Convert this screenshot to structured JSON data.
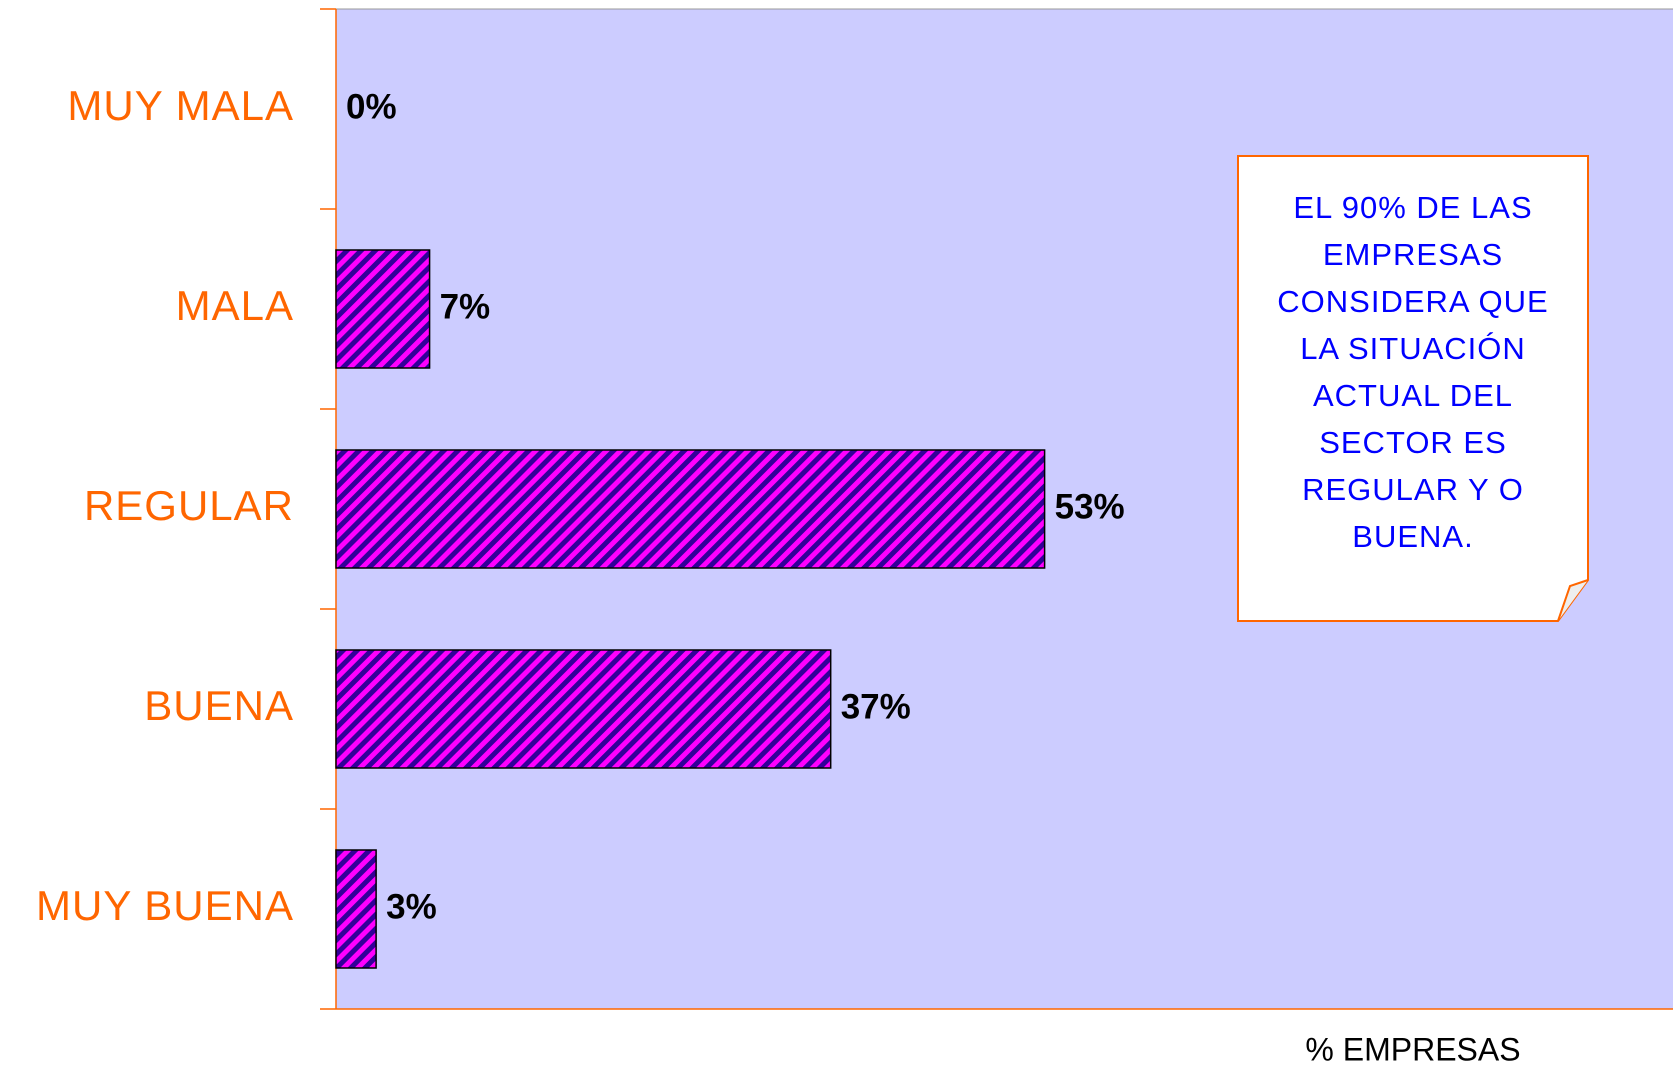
{
  "chart_data": {
    "type": "hbar",
    "categories": [
      "MUY MALA",
      "MALA",
      "REGULAR",
      "BUENA",
      "MUY BUENA"
    ],
    "values": [
      0,
      7,
      53,
      37,
      3
    ],
    "value_labels": [
      "0%",
      "7%",
      "53%",
      "37%",
      "3%"
    ],
    "color": "#ff00ff",
    "stripe_color": "#330099",
    "xlim": [
      0,
      100
    ],
    "x_label": "% EMPRESAS",
    "annotation": [
      "EL 90% DE LAS",
      "EMPRESAS",
      "CONSIDERA QUE",
      "LA SITUACIÓN",
      "ACTUAL DEL",
      "SECTOR ES",
      "REGULAR Y O",
      "BUENA."
    ]
  }
}
